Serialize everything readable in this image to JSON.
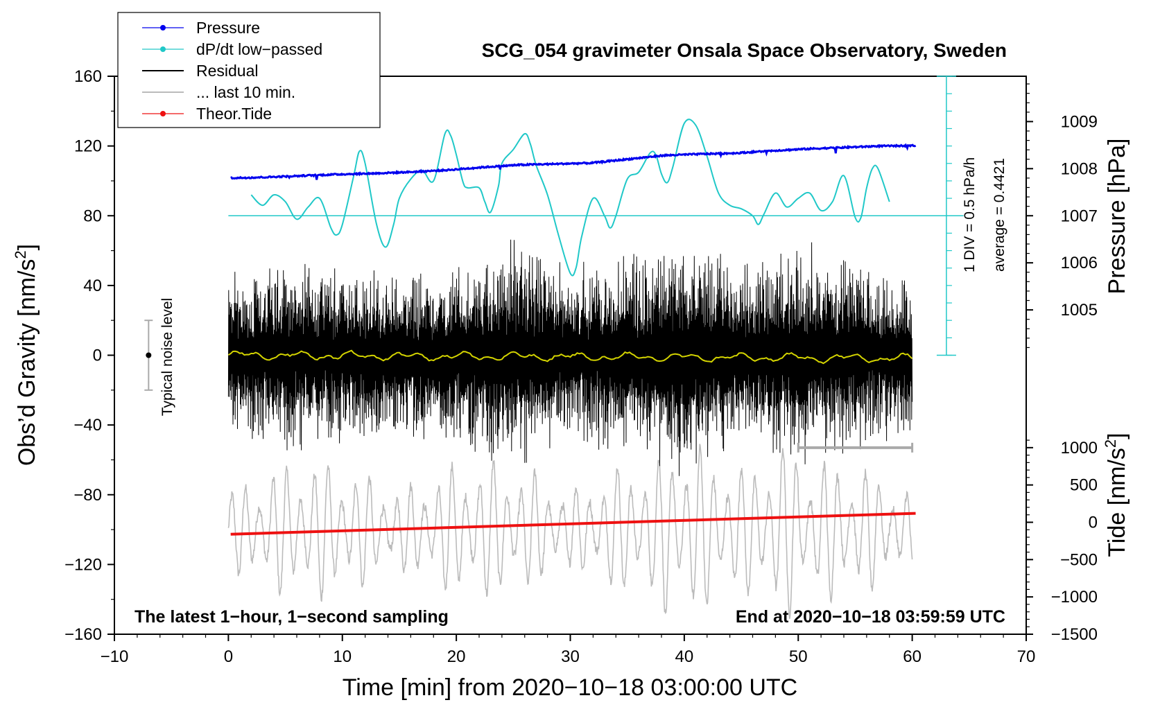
{
  "colors": {
    "pressure": "#0000ee",
    "dpdt": "#20c8c8",
    "residual": "#000000",
    "last10": "#bbbbbb",
    "tide": "#ee1111",
    "smooth": "#d4d400"
  },
  "chart_data": {
    "type": "line",
    "title": "SCG_054 gravimeter Onsala Space Observatory, Sweden",
    "xlabel": "Time [min] from 2020−10−18 03:00:00 UTC",
    "ylabel_left_main": "Obs’d Gravity [nm/s",
    "ylabel_left_sup": "2",
    "ylabel_left_end": "]",
    "ylabel_right_top": "Pressure [hPa]",
    "ylabel_right_bottom_main": "Tide [nm/s",
    "ylabel_right_bottom_sup": "2",
    "ylabel_right_bottom_end": "]",
    "xlim": [
      -10,
      70
    ],
    "ylim_left": [
      -160,
      160
    ],
    "x_ticks": [
      -10,
      0,
      10,
      20,
      30,
      40,
      50,
      60,
      70
    ],
    "x_tick_labels": [
      "−10",
      "0",
      "10",
      "20",
      "30",
      "40",
      "50",
      "60",
      "70"
    ],
    "y_ticks_left": [
      -160,
      -120,
      -80,
      -40,
      0,
      40,
      80,
      120,
      160
    ],
    "y_tick_labels_left": [
      "−160",
      "−120",
      "−80",
      "−40",
      "0",
      "40",
      "80",
      "120",
      "160"
    ],
    "pressure_axis": {
      "ticks": [
        1005,
        1006,
        1007,
        1008,
        1009
      ],
      "tick_labels": [
        "1005",
        "1006",
        "1007",
        "1008",
        "1009"
      ],
      "ref_value": 1007,
      "ref_left": 80,
      "value2": 1009,
      "left2": 134
    },
    "tide_axis": {
      "ticks": [
        -1500,
        -1000,
        -500,
        0,
        500,
        1000
      ],
      "tick_labels": [
        "−1500",
        "−1000",
        "−500",
        "0",
        "500",
        "1000"
      ],
      "ref_value": -1500,
      "ref_left": -160,
      "value2": 1000,
      "left2": -53
    },
    "series": [
      {
        "name": "Pressure",
        "x_range": [
          0.2,
          60.3
        ],
        "values_hpa": [
          1007.8,
          1007.82,
          1007.85,
          1007.88,
          1007.9,
          1007.93,
          1007.97,
          1008.03,
          1008.08,
          1008.1,
          1008.12,
          1008.2,
          1008.28,
          1008.31,
          1008.33,
          1008.38,
          1008.42,
          1008.45,
          1008.48,
          1008.49
        ]
      },
      {
        "name": "dP/dt low−passed",
        "baseline_left": 80,
        "points": [
          [
            2,
            92
          ],
          [
            3,
            86
          ],
          [
            4,
            92
          ],
          [
            5,
            88
          ],
          [
            6,
            78
          ],
          [
            7,
            85
          ],
          [
            8,
            90
          ],
          [
            9,
            73
          ],
          [
            9.5,
            69
          ],
          [
            10,
            75
          ],
          [
            11,
            103
          ],
          [
            11.5,
            117
          ],
          [
            12,
            110
          ],
          [
            13,
            75
          ],
          [
            13.8,
            62
          ],
          [
            14.5,
            75
          ],
          [
            15,
            90
          ],
          [
            16,
            101
          ],
          [
            17,
            106
          ],
          [
            18,
            100
          ],
          [
            19,
            127
          ],
          [
            19.5,
            126
          ],
          [
            20,
            115
          ],
          [
            20.6,
            99
          ],
          [
            21,
            96
          ],
          [
            22,
            96
          ],
          [
            22.5,
            88
          ],
          [
            23,
            82
          ],
          [
            23.7,
            97
          ],
          [
            24,
            110
          ],
          [
            25,
            118
          ],
          [
            26,
            127
          ],
          [
            26.5,
            121
          ],
          [
            27,
            109
          ],
          [
            28,
            92
          ],
          [
            29,
            68
          ],
          [
            30,
            47
          ],
          [
            30.5,
            50
          ],
          [
            31,
            68
          ],
          [
            32,
            90
          ],
          [
            33,
            80
          ],
          [
            33.5,
            73
          ],
          [
            34,
            80
          ],
          [
            35,
            101
          ],
          [
            36,
            105
          ],
          [
            37,
            116
          ],
          [
            37.5,
            115
          ],
          [
            38,
            104
          ],
          [
            38.5,
            99
          ],
          [
            39,
            108
          ],
          [
            40,
            133
          ],
          [
            41,
            132
          ],
          [
            42,
            114
          ],
          [
            43,
            93
          ],
          [
            44,
            86
          ],
          [
            45,
            84
          ],
          [
            46,
            80
          ],
          [
            46.5,
            75
          ],
          [
            47,
            81
          ],
          [
            48,
            93
          ],
          [
            49,
            85
          ],
          [
            50,
            90
          ],
          [
            51,
            93
          ],
          [
            52,
            83
          ],
          [
            53,
            88
          ],
          [
            54,
            103
          ],
          [
            55,
            79
          ],
          [
            55.5,
            79
          ],
          [
            56,
            96
          ],
          [
            56.5,
            107
          ],
          [
            57,
            107
          ],
          [
            58,
            88
          ]
        ]
      },
      {
        "name": "Residual",
        "x_range": [
          0,
          60
        ],
        "envelope": [
          [
            0,
            50
          ],
          [
            5,
            60
          ],
          [
            10,
            55
          ],
          [
            15,
            48
          ],
          [
            20,
            58
          ],
          [
            25,
            70
          ],
          [
            30,
            55
          ],
          [
            35,
            62
          ],
          [
            40,
            75
          ],
          [
            45,
            55
          ],
          [
            50,
            68
          ],
          [
            55,
            58
          ],
          [
            60,
            48
          ]
        ]
      },
      {
        "name": "... last 10 min.",
        "x_range": [
          0,
          60
        ],
        "center_left": -100,
        "amplitude_left": 40
      },
      {
        "name": "Theor.Tide",
        "x_range": [
          0.2,
          60.3
        ],
        "values_nms2": [
          -160,
          120
        ]
      }
    ],
    "smoothed_residual_range": [
      -3,
      3
    ],
    "noise_bar": {
      "x": -7,
      "center": 0,
      "half": 20,
      "label": "Typical noise level"
    },
    "pressure_scale_bar": {
      "x": 63,
      "label1": "1 DIV = 0.5 hPa/h",
      "label2": "average = 0.4421"
    },
    "last10_bar": {
      "x_start": 50,
      "x_end": 60
    },
    "annotation_left": "The latest 1−hour, 1−second sampling",
    "annotation_right": "End at 2020−10−18 03:59:59 UTC"
  }
}
